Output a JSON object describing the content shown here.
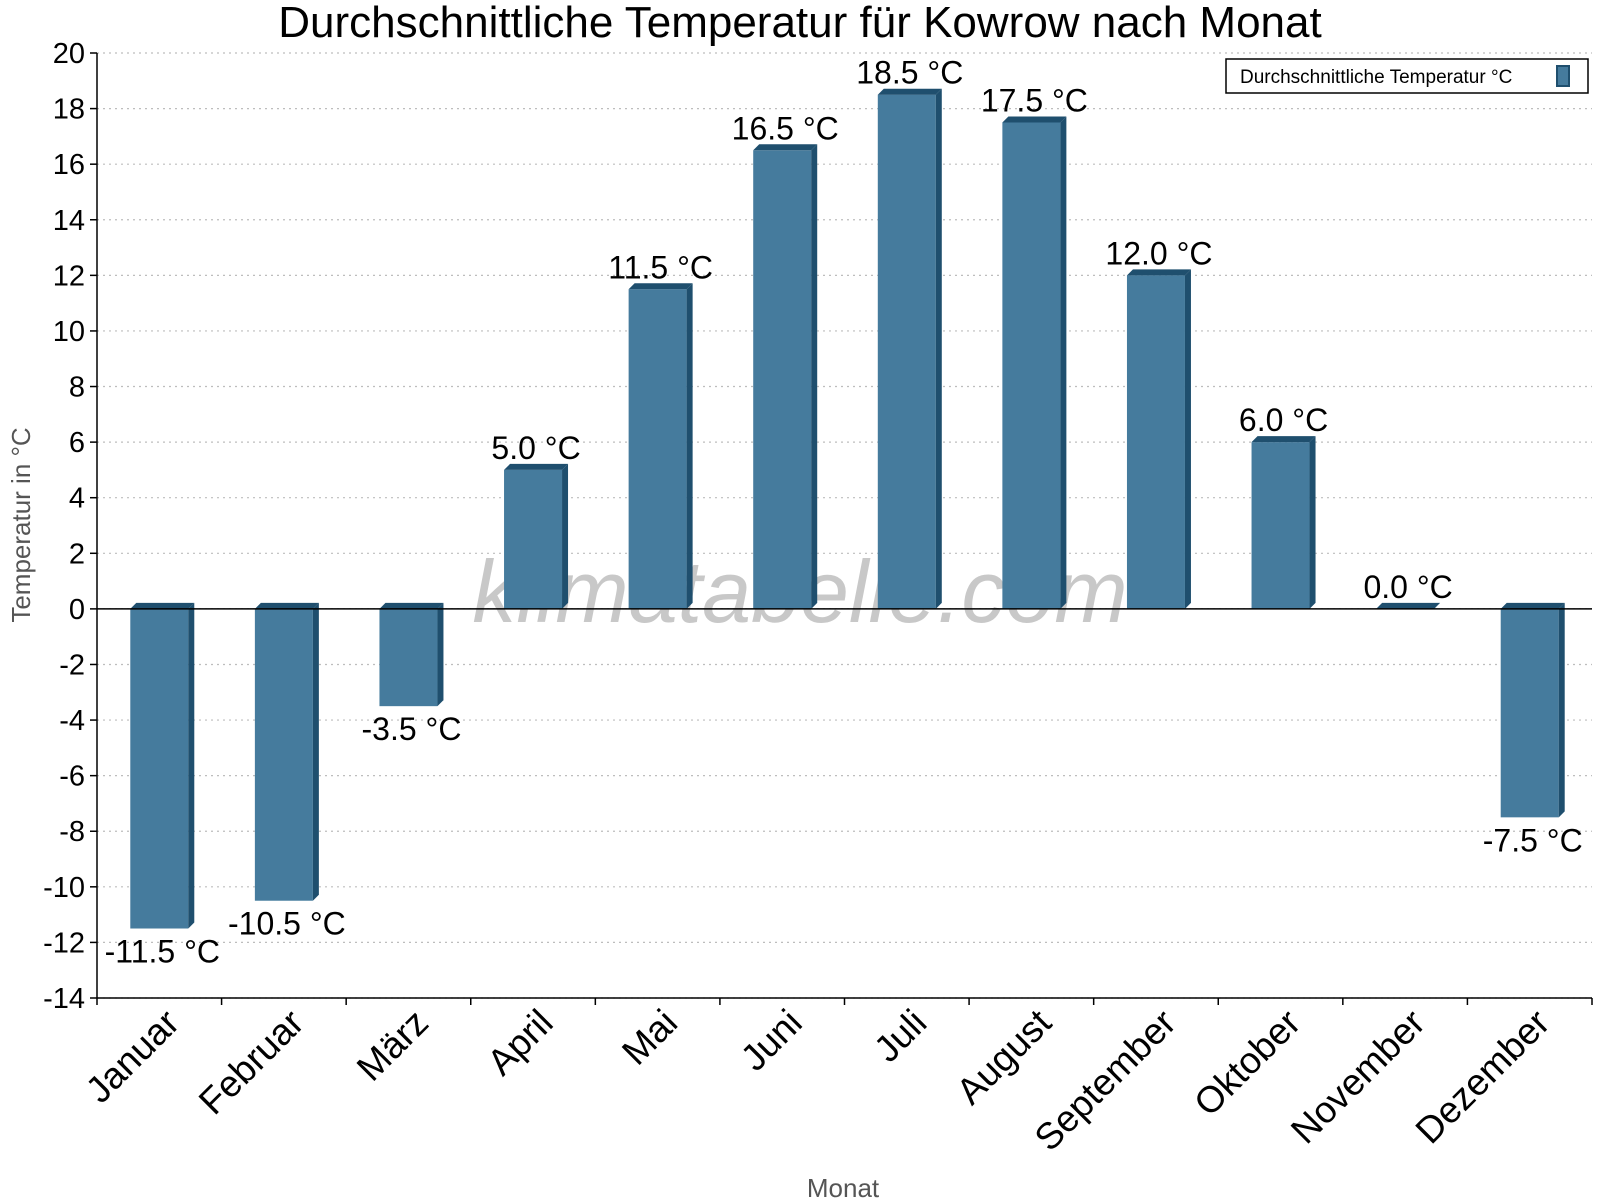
{
  "chart_data": {
    "type": "bar",
    "title": "Durchschnittliche Temperatur für Kowrow nach Monat",
    "xlabel": "Monat",
    "ylabel": "Temperatur in °C",
    "ylim": [
      -14,
      20
    ],
    "y_ticks": [
      "20",
      "18",
      "16",
      "14",
      "12",
      "10",
      "8",
      "6",
      "4",
      "2",
      "0",
      "-2",
      "-4",
      "-6",
      "-8",
      "-10",
      "-12",
      "-14"
    ],
    "grid": true,
    "legend_position": "top-right",
    "categories": [
      "Januar",
      "Februar",
      "März",
      "April",
      "Mai",
      "Juni",
      "Juli",
      "August",
      "September",
      "Oktober",
      "November",
      "Dezember"
    ],
    "series": [
      {
        "name": "Durchschnittliche Temperatur °C",
        "values": [
          -11.5,
          -10.5,
          -3.5,
          5.0,
          11.5,
          16.5,
          18.5,
          17.5,
          12.0,
          6.0,
          0.0,
          -7.5
        ],
        "labels": [
          "-11.5 °C",
          "-10.5 °C",
          "-3.5 °C",
          "5.0 °C",
          "11.5 °C",
          "16.5 °C",
          "18.5 °C",
          "17.5 °C",
          "12.0 °C",
          "6.0 °C",
          "0.0 °C",
          "-7.5 °C"
        ],
        "color": "#457b9d",
        "side_color": "#1f4f6e"
      }
    ],
    "watermark": "klimatabelle.com"
  }
}
